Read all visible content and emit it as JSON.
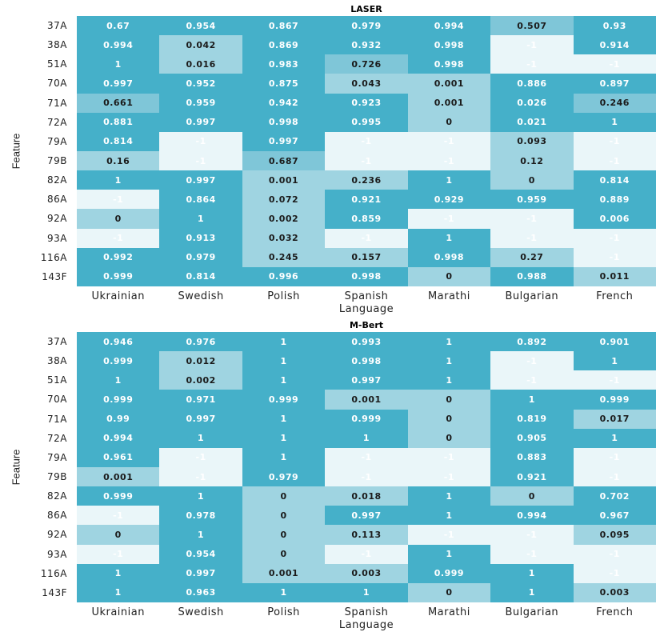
{
  "chart_data": [
    {
      "type": "heatmap",
      "title": "LASER",
      "xlabel": "Language",
      "ylabel": "Feature",
      "x_categories": [
        "Ukrainian",
        "Swedish",
        "Polish",
        "Spanish",
        "Marathi",
        "Bulgarian",
        "French"
      ],
      "y_categories": [
        "37A",
        "38A",
        "51A",
        "70A",
        "71A",
        "72A",
        "79A",
        "79B",
        "82A",
        "86A",
        "92A",
        "93A",
        "116A",
        "143F"
      ],
      "values": [
        [
          "0.67",
          "0.954",
          "0.867",
          "0.979",
          "0.994",
          "0.507",
          "0.93"
        ],
        [
          "0.994",
          "0.042",
          "0.869",
          "0.932",
          "0.998",
          "-1",
          "0.914"
        ],
        [
          "1",
          "0.016",
          "0.983",
          "0.726",
          "0.998",
          "-1",
          "-1"
        ],
        [
          "0.997",
          "0.952",
          "0.875",
          "0.043",
          "0.001",
          "0.886",
          "0.897"
        ],
        [
          "0.661",
          "0.959",
          "0.942",
          "0.923",
          "0.001",
          "0.026",
          "0.246"
        ],
        [
          "0.881",
          "0.997",
          "0.998",
          "0.995",
          "0",
          "0.021",
          "1"
        ],
        [
          "0.814",
          "-1",
          "0.997",
          "-1",
          "-1",
          "0.093",
          "-1"
        ],
        [
          "0.16",
          "-1",
          "0.687",
          "-1",
          "-1",
          "0.12",
          "-1"
        ],
        [
          "1",
          "0.997",
          "0.001",
          "0.236",
          "1",
          "0",
          "0.814"
        ],
        [
          "-1",
          "0.864",
          "0.072",
          "0.921",
          "0.929",
          "0.959",
          "0.889"
        ],
        [
          "0",
          "1",
          "0.002",
          "0.859",
          "-1",
          "-1",
          "0.006"
        ],
        [
          "-1",
          "0.913",
          "0.032",
          "-1",
          "1",
          "-1",
          "-1"
        ],
        [
          "0.992",
          "0.979",
          "0.245",
          "0.157",
          "0.998",
          "0.27",
          "-1"
        ],
        [
          "0.999",
          "0.814",
          "0.996",
          "0.998",
          "0",
          "0.988",
          "0.011"
        ]
      ],
      "shades": [
        [
          "dark",
          "dark",
          "dark",
          "dark",
          "dark",
          "mid",
          "dark"
        ],
        [
          "dark",
          "light",
          "dark",
          "dark",
          "dark",
          "none",
          "dark"
        ],
        [
          "dark",
          "light",
          "dark",
          "mid",
          "dark",
          "none",
          "none"
        ],
        [
          "dark",
          "dark",
          "dark",
          "light",
          "light",
          "dark",
          "dark"
        ],
        [
          "mid",
          "dark",
          "dark",
          "dark",
          "light",
          "dark",
          "mid"
        ],
        [
          "dark",
          "dark",
          "dark",
          "dark",
          "light",
          "dark",
          "dark"
        ],
        [
          "dark",
          "none",
          "dark",
          "none",
          "none",
          "light",
          "none"
        ],
        [
          "light",
          "none",
          "mid",
          "none",
          "none",
          "light",
          "none"
        ],
        [
          "dark",
          "dark",
          "light",
          "light",
          "dark",
          "light",
          "dark"
        ],
        [
          "none",
          "dark",
          "light",
          "dark",
          "dark",
          "dark",
          "dark"
        ],
        [
          "light",
          "dark",
          "light",
          "dark",
          "none",
          "none",
          "dark"
        ],
        [
          "none",
          "dark",
          "light",
          "none",
          "dark",
          "none",
          "none"
        ],
        [
          "dark",
          "dark",
          "light",
          "light",
          "dark",
          "light",
          "none"
        ],
        [
          "dark",
          "dark",
          "dark",
          "dark",
          "light",
          "dark",
          "light"
        ]
      ]
    },
    {
      "type": "heatmap",
      "title": "M-Bert",
      "xlabel": "Language",
      "ylabel": "Feature",
      "x_categories": [
        "Ukrainian",
        "Swedish",
        "Polish",
        "Spanish",
        "Marathi",
        "Bulgarian",
        "French"
      ],
      "y_categories": [
        "37A",
        "38A",
        "51A",
        "70A",
        "71A",
        "72A",
        "79A",
        "79B",
        "82A",
        "86A",
        "92A",
        "93A",
        "116A",
        "143F"
      ],
      "values": [
        [
          "0.946",
          "0.976",
          "1",
          "0.993",
          "1",
          "0.892",
          "0.901"
        ],
        [
          "0.999",
          "0.012",
          "1",
          "0.998",
          "1",
          "-1",
          "1"
        ],
        [
          "1",
          "0.002",
          "1",
          "0.997",
          "1",
          "-1",
          "-1"
        ],
        [
          "0.999",
          "0.971",
          "0.999",
          "0.001",
          "0",
          "1",
          "0.999"
        ],
        [
          "0.99",
          "0.997",
          "1",
          "0.999",
          "0",
          "0.819",
          "0.017"
        ],
        [
          "0.994",
          "1",
          "1",
          "1",
          "0",
          "0.905",
          "1"
        ],
        [
          "0.961",
          "-1",
          "1",
          "-1",
          "-1",
          "0.883",
          "-1"
        ],
        [
          "0.001",
          "-1",
          "0.979",
          "-1",
          "-1",
          "0.921",
          "-1"
        ],
        [
          "0.999",
          "1",
          "0",
          "0.018",
          "1",
          "0",
          "0.702"
        ],
        [
          "-1",
          "0.978",
          "0",
          "0.997",
          "1",
          "0.994",
          "0.967"
        ],
        [
          "0",
          "1",
          "0",
          "0.113",
          "-1",
          "-1",
          "0.095"
        ],
        [
          "-1",
          "0.954",
          "0",
          "-1",
          "1",
          "-1",
          "-1"
        ],
        [
          "1",
          "0.997",
          "0.001",
          "0.003",
          "0.999",
          "1",
          "-1"
        ],
        [
          "1",
          "0.963",
          "1",
          "1",
          "0",
          "1",
          "0.003"
        ]
      ],
      "shades": [
        [
          "dark",
          "dark",
          "dark",
          "dark",
          "dark",
          "dark",
          "dark"
        ],
        [
          "dark",
          "light",
          "dark",
          "dark",
          "dark",
          "none",
          "dark"
        ],
        [
          "dark",
          "light",
          "dark",
          "dark",
          "dark",
          "none",
          "none"
        ],
        [
          "dark",
          "dark",
          "dark",
          "light",
          "light",
          "dark",
          "dark"
        ],
        [
          "dark",
          "dark",
          "dark",
          "dark",
          "light",
          "dark",
          "light"
        ],
        [
          "dark",
          "dark",
          "dark",
          "dark",
          "light",
          "dark",
          "dark"
        ],
        [
          "dark",
          "none",
          "dark",
          "none",
          "none",
          "dark",
          "none"
        ],
        [
          "light",
          "none",
          "dark",
          "none",
          "none",
          "dark",
          "none"
        ],
        [
          "dark",
          "dark",
          "light",
          "light",
          "dark",
          "light",
          "dark"
        ],
        [
          "none",
          "dark",
          "light",
          "dark",
          "dark",
          "dark",
          "dark"
        ],
        [
          "light",
          "dark",
          "light",
          "light",
          "none",
          "none",
          "light"
        ],
        [
          "none",
          "dark",
          "light",
          "none",
          "dark",
          "none",
          "none"
        ],
        [
          "dark",
          "dark",
          "light",
          "light",
          "dark",
          "dark",
          "none"
        ],
        [
          "dark",
          "dark",
          "dark",
          "dark",
          "light",
          "dark",
          "light"
        ]
      ]
    }
  ],
  "colors": {
    "dark": "#45b0c9",
    "mid": "#7fc6d8",
    "light": "#9fd4e1",
    "none": "#eaf6f9"
  }
}
